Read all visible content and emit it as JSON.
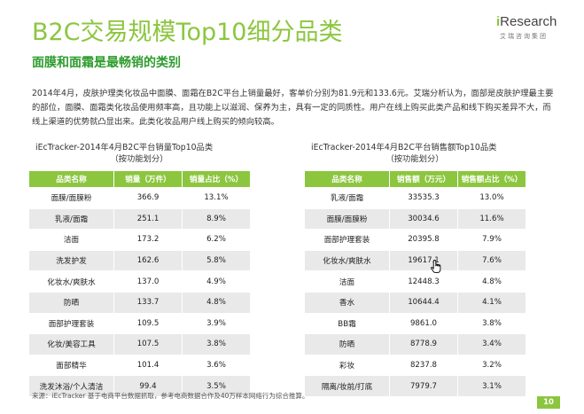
{
  "header": {
    "title": "B2C交易规模Top10细分品类",
    "subtitle": "面膜和面霜是最畅销的类别"
  },
  "logo": {
    "main_i": "i",
    "main_text": "Research",
    "sub": "艾瑞咨询集团"
  },
  "paragraph": "2014年4月，皮肤护理类化妆品中面膜、面霜在B2C平台上销量最好，客单价分别为81.9元和133.6元。艾瑞分析认为，面部是皮肤护理最主要的部位，面膜、面霜类化妆品使用频率高，且功能上以滋润、保养为主，具有一定的同质性。用户在线上购买此类产品和线下购买差异不大，而线上渠道的优势就凸显出来。此类化妆品用户线上购买的倾向较高。",
  "left_table": {
    "caption_line1": "iEcTracker-2014年4月B2C平台销量Top10品类",
    "caption_line2": "（按功能划分）",
    "headers": [
      "品类名称",
      "销量（万件）",
      "销量占比（%）"
    ],
    "rows": [
      [
        "面膜/面膜粉",
        "366.9",
        "13.1%"
      ],
      [
        "乳液/面霜",
        "251.1",
        "8.9%"
      ],
      [
        "洁面",
        "173.2",
        "6.2%"
      ],
      [
        "洗发护发",
        "162.6",
        "5.8%"
      ],
      [
        "化妆水/爽肤水",
        "137.0",
        "4.9%"
      ],
      [
        "防晒",
        "133.7",
        "4.8%"
      ],
      [
        "面部护理套装",
        "109.5",
        "3.9%"
      ],
      [
        "化妆/美容工具",
        "107.5",
        "3.8%"
      ],
      [
        "面部精华",
        "101.4",
        "3.6%"
      ],
      [
        "洗发沐浴/个人清洁",
        "99.4",
        "3.5%"
      ]
    ]
  },
  "right_table": {
    "caption_line1": "iEcTracker-2014年4月B2C平台销售额Top10品类",
    "caption_line2": "（按功能划分）",
    "headers": [
      "品类名称",
      "销售额（万元）",
      "销售额占比（%）"
    ],
    "rows": [
      [
        "乳液/面霜",
        "33535.3",
        "13.0%"
      ],
      [
        "面膜/面膜粉",
        "30034.6",
        "11.6%"
      ],
      [
        "面部护理套装",
        "20395.8",
        "7.9%"
      ],
      [
        "化妆水/爽肤水",
        "19617.1",
        "7.6%"
      ],
      [
        "洁面",
        "12448.3",
        "4.8%"
      ],
      [
        "香水",
        "10644.4",
        "4.1%"
      ],
      [
        "BB霜",
        "9861.0",
        "3.8%"
      ],
      [
        "防晒",
        "8778.9",
        "3.4%"
      ],
      [
        "彩妆",
        "8237.8",
        "3.2%"
      ],
      [
        "隔离/妆前/打底",
        "7979.7",
        "3.1%"
      ]
    ]
  },
  "footer": {
    "source": "来源：iEcTracker 基于电商平台数据抓取，参考电商数据合作及40万样本网络行为综合推算。",
    "page_number": "10"
  },
  "colors": {
    "accent_green": "#8cc63f",
    "subtitle_green": "#2e9c2e",
    "row_shade": "#e9e9e9"
  },
  "icons": {
    "cursor": "hand-pointer-icon"
  }
}
